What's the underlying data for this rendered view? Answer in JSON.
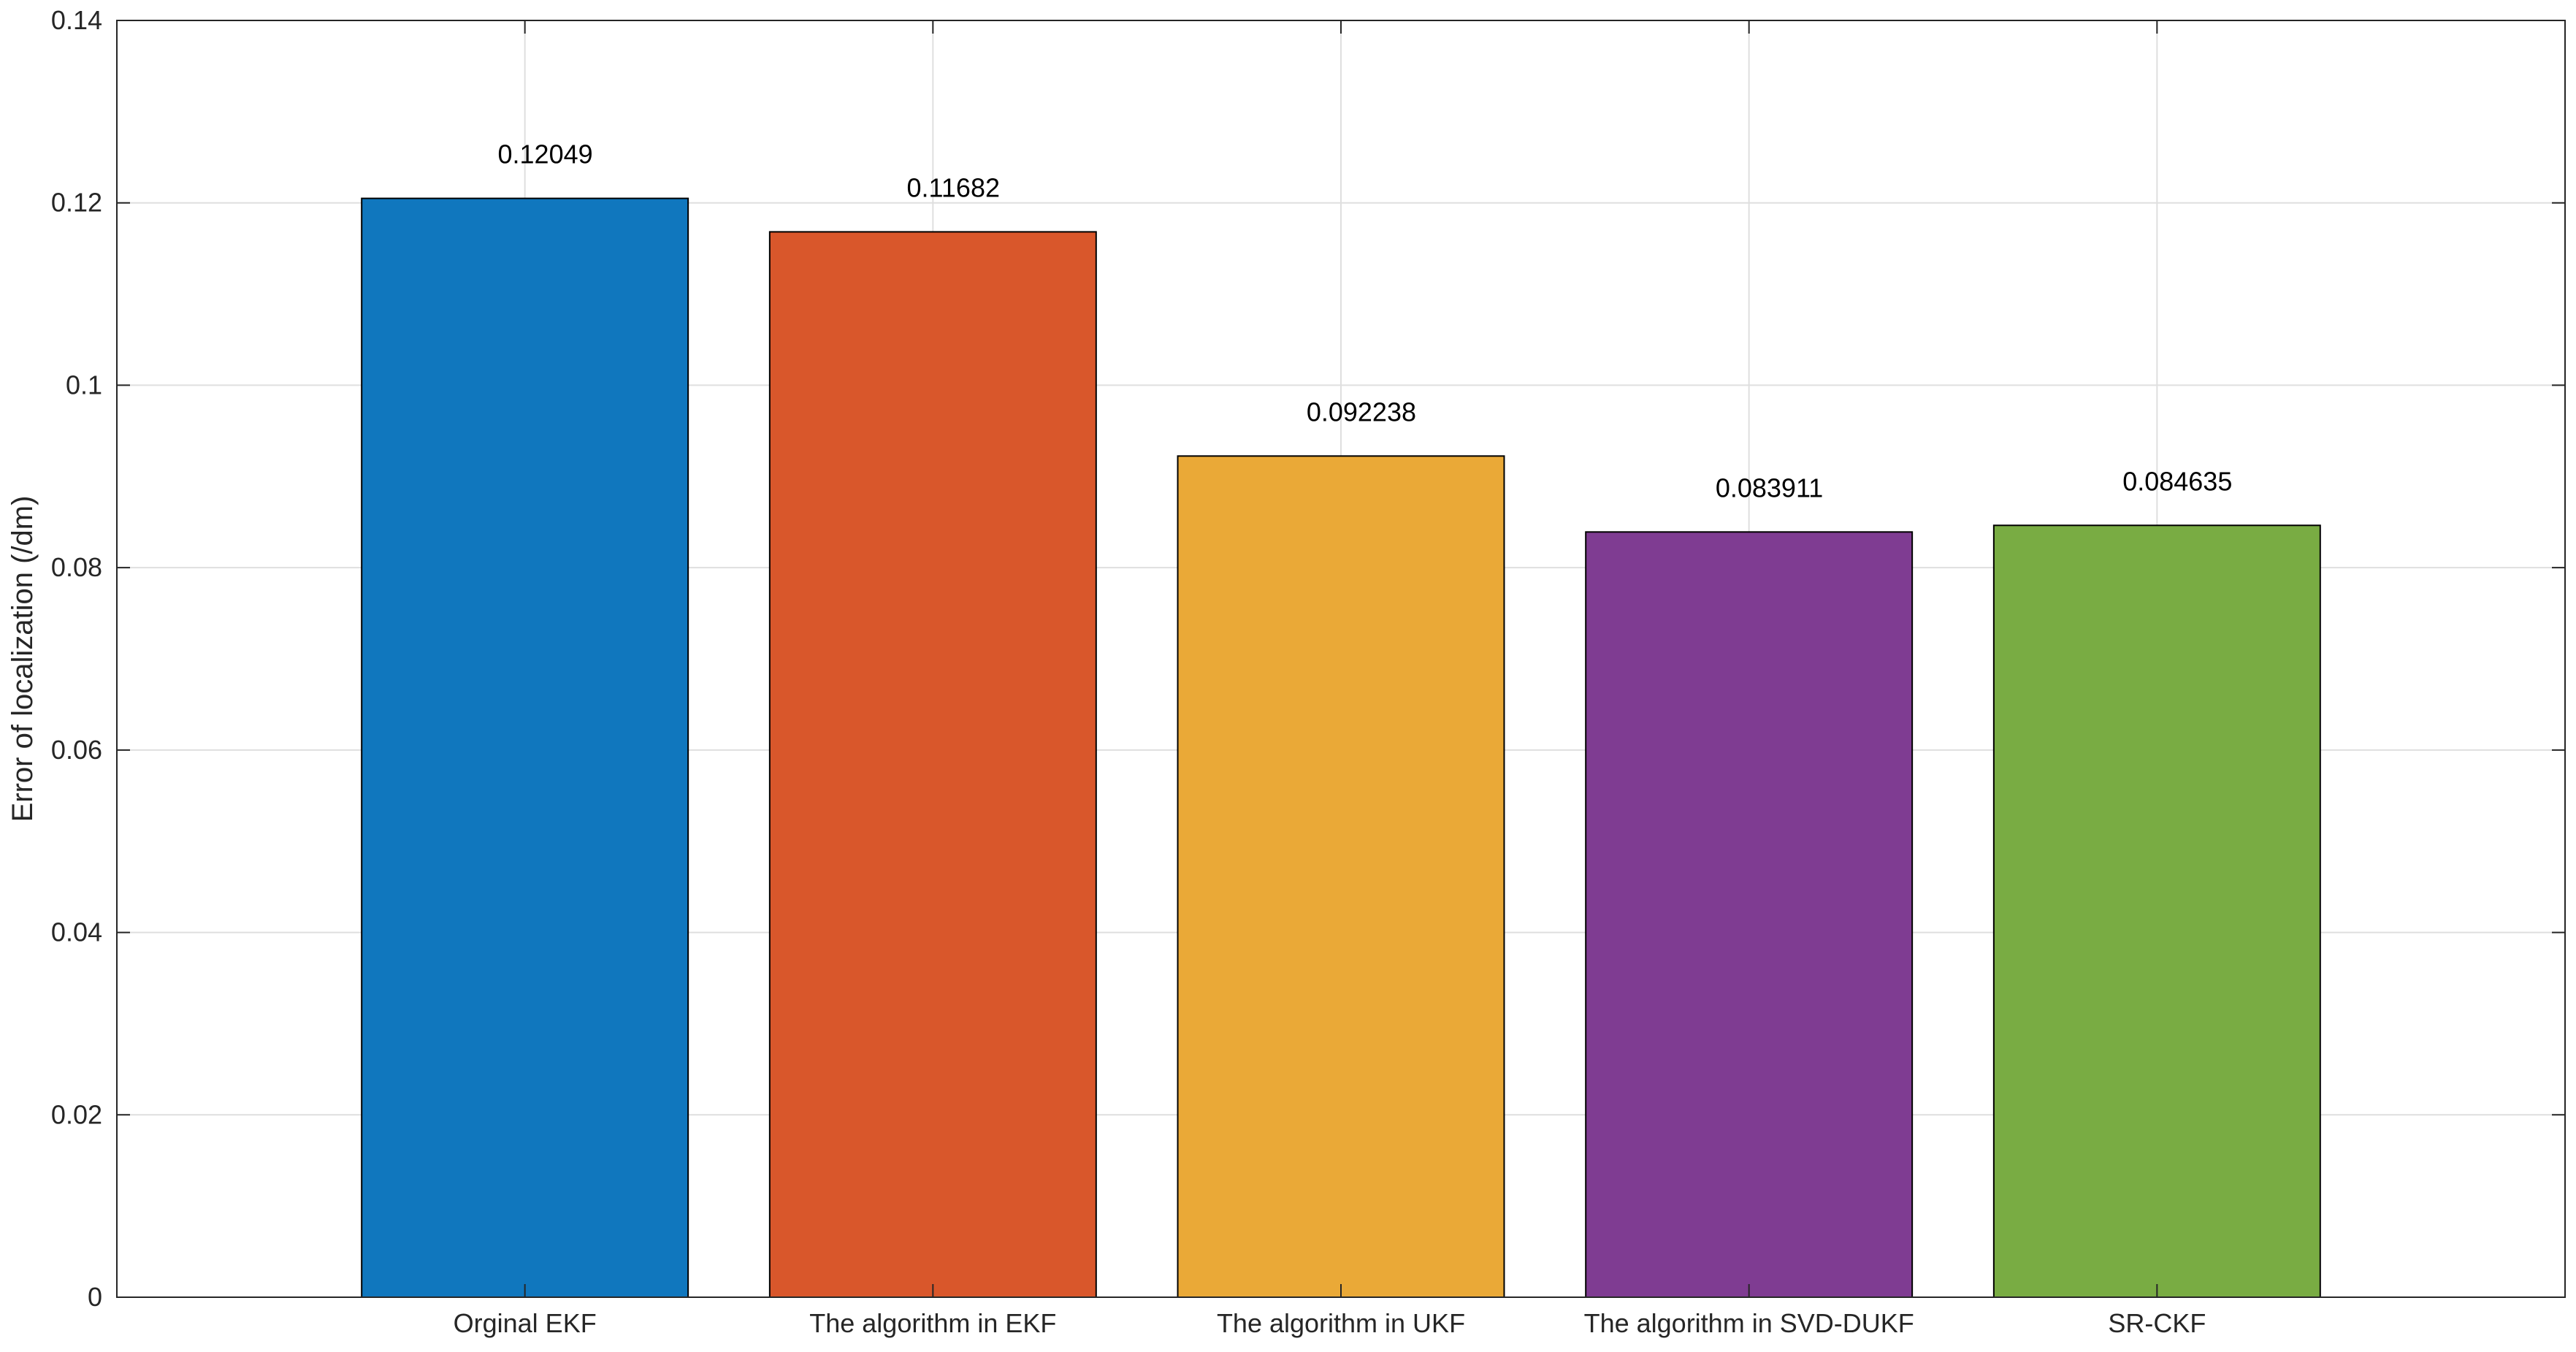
{
  "chart_data": {
    "type": "bar",
    "title": "",
    "xlabel": "",
    "ylabel": "Error of localization (/dm)",
    "categories": [
      "Orginal EKF",
      "The algorithm in EKF",
      "The algorithm in UKF",
      "The algorithm in SVD-DUKF",
      "SR-CKF"
    ],
    "values": [
      0.12049,
      0.11682,
      0.092238,
      0.083911,
      0.084635
    ],
    "data_labels": [
      "0.12049",
      "0.11682",
      "0.092238",
      "0.083911",
      "0.084635"
    ],
    "colors": [
      "#1077be",
      "#d9572b",
      "#eaa937",
      "#7f3c92",
      "#79ac43"
    ],
    "ylim": [
      0,
      0.14
    ],
    "yticks": [
      0,
      0.02,
      0.04,
      0.06,
      0.08,
      0.1,
      0.12,
      0.14
    ],
    "ytick_labels": [
      "0",
      "0.02",
      "0.04",
      "0.06",
      "0.08",
      "0.1",
      "0.12",
      "0.14"
    ],
    "xlim": [
      0,
      6
    ],
    "grid": true,
    "legend": "none"
  }
}
